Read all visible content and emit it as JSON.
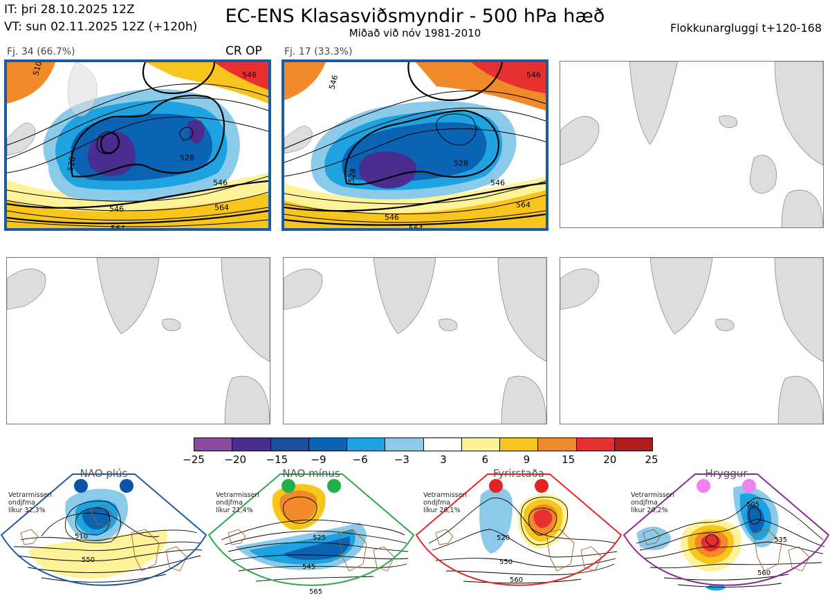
{
  "header": {
    "it": "IT: þri 28.10.2025 12Z",
    "vt": "VT: sun 02.11.2025 12Z  (+120h)",
    "title": "EC-ENS Klasasviðsmyndir - 500 hPa hæð",
    "subtitle": "Miðað við nóv 1981-2010",
    "window": "Flokkunargluggi t+120-168"
  },
  "panels": [
    {
      "label": "Fj. 34 (66.7%)",
      "tag": "CR OP",
      "contours": [
        "546",
        "528",
        "546",
        "564",
        "546",
        "564",
        "528",
        "510"
      ]
    },
    {
      "label": "Fj. 17 (33.3%)",
      "tag": "",
      "contours": [
        "546",
        "546",
        "528",
        "528",
        "546",
        "564",
        "546",
        "564"
      ]
    },
    {
      "label": "",
      "tag": ""
    },
    {
      "label": "",
      "tag": ""
    },
    {
      "label": "",
      "tag": ""
    },
    {
      "label": "",
      "tag": ""
    }
  ],
  "colorbar": {
    "colors": [
      "#8c4a9e",
      "#4b2c8f",
      "#1f4ea0",
      "#0a63b3",
      "#1ea3e0",
      "#8ccaea",
      "#ffffff",
      "#fff39a",
      "#f8c51c",
      "#f08a2b",
      "#e83030",
      "#b01c1c"
    ],
    "ticks": [
      "−25",
      "−20",
      "−15",
      "−9",
      "−6",
      "−3",
      "3",
      "6",
      "9",
      "15",
      "20",
      "25"
    ]
  },
  "regimes": [
    {
      "title": "NAO plús",
      "info": [
        "Vetrarmisseri",
        "ondjfma",
        "líkur 32,3%"
      ],
      "color": "#1c5aa8",
      "dot": "#0b55a8",
      "labels": [
        "510",
        "550"
      ]
    },
    {
      "title": "NAO mínus",
      "info": [
        "Vetrarmisseri",
        "ondjfma",
        "líkur 21,4%"
      ],
      "color": "#2aa84a",
      "dot": "#20b04a",
      "labels": [
        "525",
        "545",
        "565"
      ]
    },
    {
      "title": "Fyrirstaða",
      "info": [
        "Vetrarmisseri",
        "ondjfma",
        "líkur 26,1%"
      ],
      "color": "#e02828",
      "dot": "#e42424",
      "labels": [
        "520",
        "550",
        "560"
      ]
    },
    {
      "title": "Hryggur",
      "info": [
        "Vetrarmisseri",
        "ondjfma",
        "líkur 20,2%"
      ],
      "color": "#8a2a96",
      "dot": "#ee82ee",
      "labels": [
        "505",
        "535",
        "560"
      ]
    }
  ]
}
